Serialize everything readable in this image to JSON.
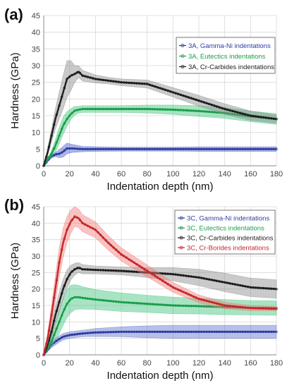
{
  "chart_data": [
    {
      "panel_label": "(a)",
      "type": "line",
      "xlabel": "Indentation depth (nm)",
      "ylabel": "Hardness (GPa)",
      "xlim": [
        0,
        180
      ],
      "ylim": [
        0,
        45
      ],
      "xticks": [
        "0",
        "20",
        "40",
        "60",
        "80",
        "100",
        "120",
        "140",
        "160",
        "180"
      ],
      "yticks": [
        "0",
        "5",
        "10",
        "15",
        "20",
        "25",
        "30",
        "35",
        "40",
        "45"
      ],
      "grid": true,
      "legend_position": "top-right",
      "series": [
        {
          "name": "3A, Gamma-Ni indentations",
          "color": "#2c3ea0",
          "band_color": "#4a5cc8",
          "x": [
            0,
            3,
            6,
            9,
            12,
            15,
            18,
            22,
            26,
            30,
            40,
            60,
            80,
            100,
            120,
            140,
            160,
            180
          ],
          "y": [
            0,
            1.5,
            2.8,
            3.4,
            3.6,
            4.2,
            5.2,
            5.2,
            5.1,
            5.0,
            5.0,
            5.0,
            5.0,
            5.0,
            5.0,
            5.0,
            5.0,
            5.0
          ],
          "err": [
            0,
            0.3,
            0.5,
            0.6,
            1.2,
            1.6,
            1.6,
            1.2,
            1.0,
            0.8,
            0.7,
            0.6,
            0.6,
            0.6,
            0.7,
            0.7,
            0.7,
            0.7
          ]
        },
        {
          "name": "3A, Eutectics indentations",
          "color": "#1a9e4a",
          "band_color": "#3fc47a",
          "x": [
            0,
            3,
            6,
            9,
            12,
            15,
            18,
            21,
            24,
            27,
            30,
            40,
            60,
            80,
            100,
            120,
            140,
            160,
            180
          ],
          "y": [
            0,
            2,
            3.5,
            6,
            9,
            12,
            14,
            15.5,
            16.5,
            16.8,
            17.0,
            17.0,
            17.0,
            17.0,
            16.8,
            16.4,
            15.8,
            14.8,
            14.0
          ],
          "err": [
            0,
            0.4,
            1.0,
            1.8,
            2.4,
            2.6,
            2.2,
            1.6,
            1.3,
            1.0,
            1.0,
            1.0,
            1.0,
            1.2,
            1.4,
            1.6,
            1.6,
            1.6,
            1.6
          ]
        },
        {
          "name": "3A, Cr-Carbides indentations",
          "color": "#1e1e1e",
          "band_color": "#8a8a8a",
          "x": [
            0,
            3,
            6,
            9,
            12,
            15,
            18,
            21,
            24,
            27,
            30,
            40,
            50,
            60,
            80,
            100,
            120,
            140,
            160,
            180
          ],
          "y": [
            0,
            4,
            9,
            14,
            18,
            22,
            26,
            27,
            27.5,
            28.2,
            27.0,
            26.0,
            25.5,
            25.0,
            24.5,
            22.0,
            19.5,
            17.0,
            15.0,
            14.0
          ],
          "err": [
            0,
            1.0,
            2.0,
            3.0,
            4.0,
            5.0,
            5.5,
            4.5,
            2.5,
            1.8,
            1.6,
            1.2,
            1.0,
            1.0,
            1.2,
            1.4,
            1.6,
            1.6,
            1.4,
            1.2
          ]
        }
      ]
    },
    {
      "panel_label": "(b)",
      "type": "line",
      "xlabel": "Indentation depth (nm)",
      "ylabel": "Hardness (GPa)",
      "xlim": [
        0,
        180
      ],
      "ylim": [
        0,
        45
      ],
      "xticks": [
        "0",
        "20",
        "40",
        "60",
        "80",
        "100",
        "120",
        "140",
        "160",
        "180"
      ],
      "yticks": [
        "0",
        "5",
        "10",
        "15",
        "20",
        "25",
        "30",
        "35",
        "40",
        "45"
      ],
      "grid": true,
      "legend_position": "top-right",
      "series": [
        {
          "name": "3C, Gamma-Ni indentations",
          "color": "#2c3ea0",
          "band_color": "#6070cc",
          "x": [
            0,
            3,
            6,
            9,
            12,
            15,
            20,
            30,
            40,
            60,
            80,
            100,
            120,
            140,
            160,
            180
          ],
          "y": [
            0,
            1.5,
            3,
            4,
            4.8,
            5.5,
            6.0,
            6.5,
            6.8,
            7.0,
            7.0,
            7.0,
            7.0,
            7.0,
            7.0,
            7.0
          ],
          "err": [
            0,
            0.5,
            0.8,
            1.0,
            1.0,
            1.0,
            1.0,
            1.0,
            1.2,
            1.5,
            1.8,
            2.0,
            2.0,
            2.0,
            2.0,
            2.0
          ]
        },
        {
          "name": "3C, Eutectics indentations",
          "color": "#1a9e4a",
          "band_color": "#3fc47a",
          "x": [
            0,
            3,
            6,
            9,
            12,
            15,
            18,
            21,
            24,
            27,
            30,
            40,
            60,
            80,
            100,
            120,
            140,
            160,
            180
          ],
          "y": [
            0,
            2,
            4,
            7,
            10,
            13,
            15.5,
            17,
            17.5,
            17.5,
            17.3,
            16.8,
            16.0,
            15.5,
            15.0,
            14.8,
            14.5,
            14.3,
            14.2
          ],
          "err": [
            0,
            0.5,
            1.5,
            2.5,
            3.5,
            4.0,
            4.2,
            4.2,
            3.8,
            3.6,
            3.4,
            3.0,
            2.8,
            2.6,
            2.5,
            2.4,
            2.3,
            2.2,
            2.2
          ]
        },
        {
          "name": "3C, Cr-Carbides indentations",
          "color": "#1e1e1e",
          "band_color": "#8a8a8a",
          "x": [
            0,
            3,
            6,
            9,
            12,
            15,
            18,
            21,
            24,
            27,
            30,
            40,
            60,
            80,
            100,
            120,
            140,
            160,
            180
          ],
          "y": [
            0,
            3,
            7,
            12,
            16,
            20,
            23,
            25,
            26,
            26.5,
            26.0,
            25.8,
            25.5,
            25.0,
            24.5,
            23.5,
            22.0,
            20.5,
            20.0
          ],
          "err": [
            0,
            1.0,
            2.0,
            2.5,
            3.0,
            3.0,
            2.8,
            2.2,
            1.8,
            1.5,
            1.4,
            1.2,
            1.2,
            1.5,
            2.0,
            2.5,
            2.8,
            2.8,
            2.8
          ]
        },
        {
          "name": "3C, Cr-Borides indentations",
          "color": "#c62828",
          "band_color": "#f07a7a",
          "x": [
            0,
            3,
            6,
            9,
            12,
            15,
            18,
            21,
            24,
            27,
            30,
            40,
            50,
            60,
            80,
            100,
            120,
            140,
            160,
            180
          ],
          "y": [
            0,
            5,
            12,
            20,
            28,
            34,
            38,
            40.5,
            42,
            41.5,
            40.0,
            38.0,
            34.0,
            30.5,
            25.5,
            20.5,
            17.0,
            15.0,
            14.2,
            14.0
          ],
          "err": [
            0,
            1.5,
            3.0,
            4.0,
            4.5,
            4.5,
            4.0,
            3.5,
            3.0,
            2.8,
            2.6,
            2.4,
            2.2,
            2.0,
            1.8,
            1.5,
            1.2,
            1.0,
            0.8,
            0.6
          ]
        }
      ]
    }
  ]
}
